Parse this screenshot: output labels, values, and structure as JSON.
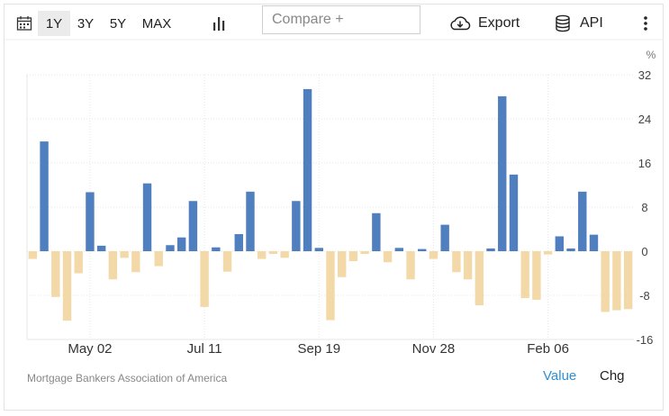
{
  "toolbar": {
    "ranges": [
      "1Y",
      "3Y",
      "5Y",
      "MAX"
    ],
    "active_range": "1Y",
    "compare_placeholder": "Compare +",
    "export_label": "Export",
    "api_label": "API"
  },
  "colors": {
    "positive": "#4f7fbf",
    "negative": "#f3d9a8",
    "grid": "#e6e6e6",
    "accent": "#2f8fd8"
  },
  "chart_data": {
    "type": "bar",
    "unit_label": "%",
    "ylim": [
      -16,
      32
    ],
    "yticks": [
      32,
      24,
      16,
      8,
      0,
      -8,
      -16
    ],
    "xtick_labels": [
      "May 02",
      "Jul 11",
      "Sep 19",
      "Nov 28",
      "Feb 06"
    ],
    "xtick_index": [
      5,
      15,
      25,
      35,
      45
    ],
    "values": [
      -1.4,
      19.9,
      -8.3,
      -12.6,
      -4.0,
      10.7,
      1.0,
      -5.1,
      -1.2,
      -3.8,
      12.3,
      -2.7,
      1.1,
      2.5,
      9.1,
      -10.1,
      0.7,
      -3.7,
      3.1,
      10.8,
      -1.4,
      -0.5,
      -1.2,
      9.1,
      29.4,
      0.6,
      -12.5,
      -4.7,
      -1.8,
      -0.5,
      6.9,
      -2.0,
      0.6,
      -5.1,
      0.4,
      -1.4,
      4.8,
      -3.8,
      -5.1,
      -9.8,
      0.5,
      28.1,
      13.9,
      -8.5,
      -8.8,
      -0.6,
      2.7,
      0.5,
      10.8,
      3.0,
      -11.0,
      -10.7,
      -10.5
    ],
    "source": "Mortgage Bankers Association of America",
    "legend": [
      "Value",
      "Chg"
    ],
    "active_legend": "Value"
  }
}
